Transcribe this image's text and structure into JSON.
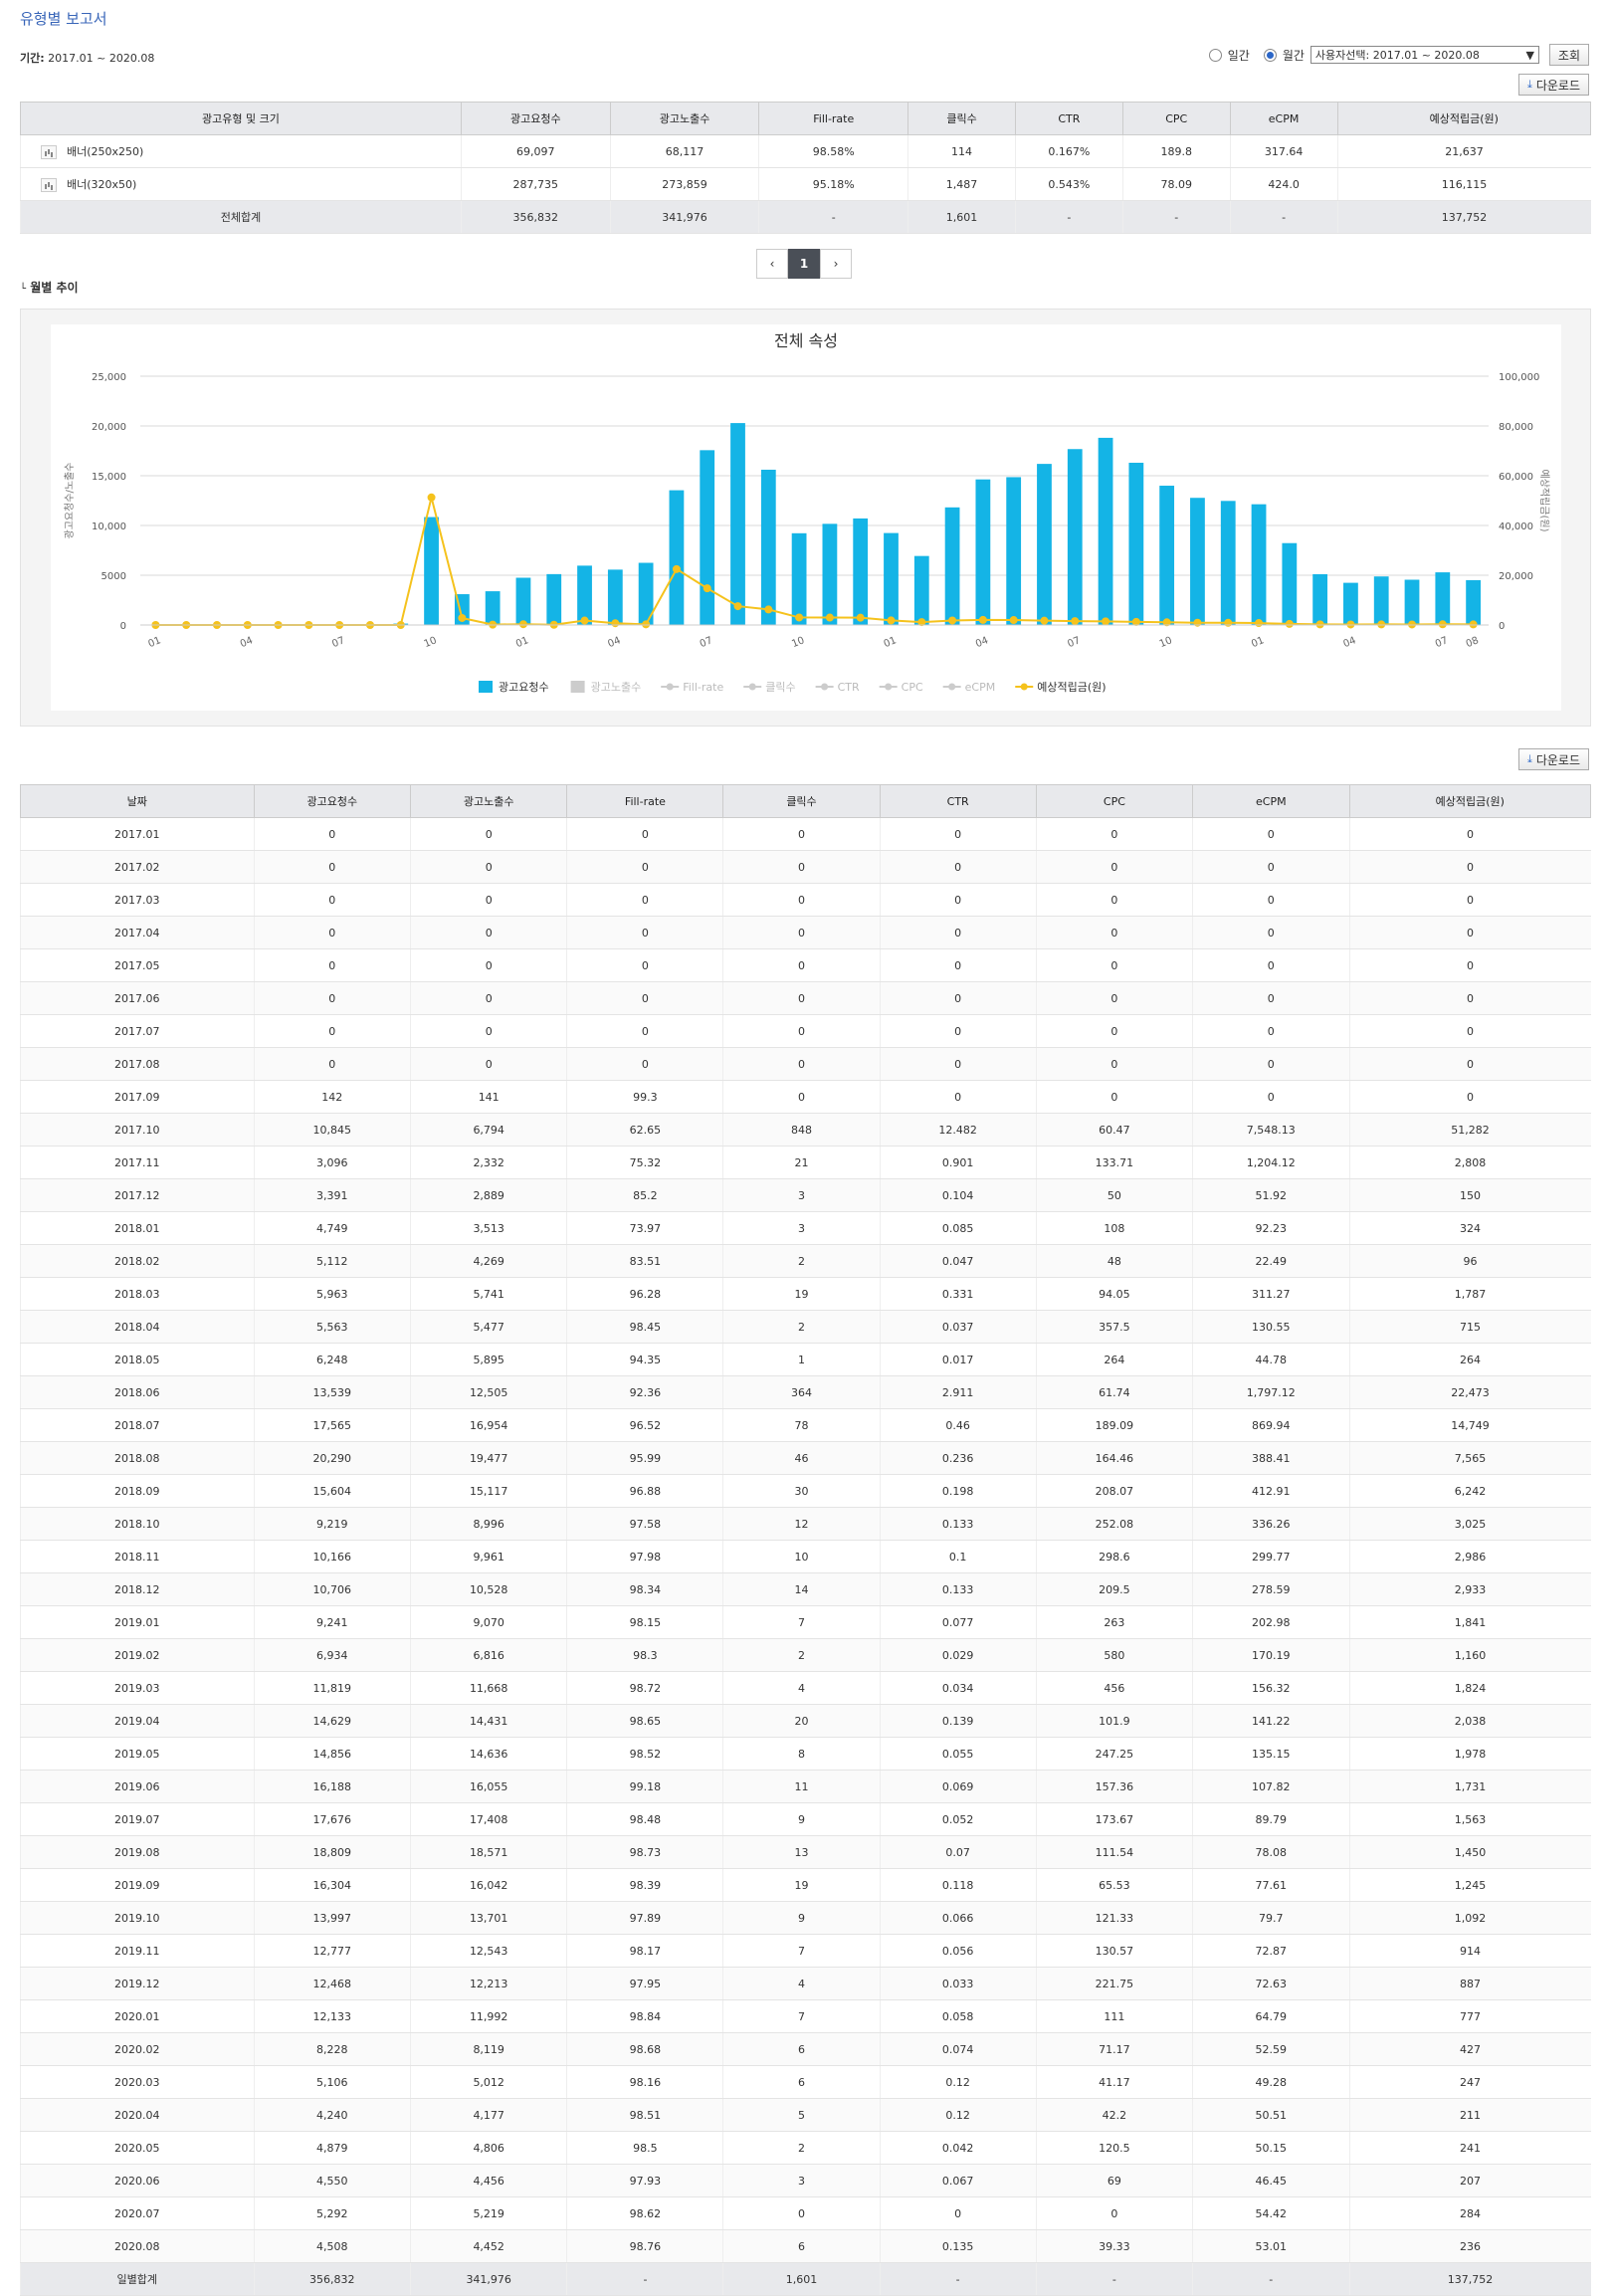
{
  "header": {
    "title": "유형별 보고서",
    "period_label": "기간:",
    "period_value": "2017.01 ~ 2020.08",
    "radio_daily": "일간",
    "radio_monthly": "월간",
    "select_value": "사용자선택: 2017.01 ~ 2020.08",
    "search_button": "조회",
    "download_button": "다운로드"
  },
  "summary": {
    "headers": [
      "광고유형 및 크기",
      "광고요청수",
      "광고노출수",
      "Fill-rate",
      "클릭수",
      "CTR",
      "CPC",
      "eCPM",
      "예상적립금(원)"
    ],
    "rows": [
      [
        "배너(250x250)",
        "69,097",
        "68,117",
        "98.58%",
        "114",
        "0.167%",
        "189.8",
        "317.64",
        "21,637"
      ],
      [
        "배너(320x50)",
        "287,735",
        "273,859",
        "95.18%",
        "1,487",
        "0.543%",
        "78.09",
        "424.0",
        "116,115"
      ]
    ],
    "total": [
      "전체합계",
      "356,832",
      "341,976",
      "-",
      "1,601",
      "-",
      "-",
      "-",
      "137,752"
    ]
  },
  "pager": {
    "current": "1"
  },
  "section_title": "월별 추이",
  "chart_data": {
    "type": "bar",
    "title": "전체 속성",
    "ylabel": "광고요청수/노출수",
    "y2label": "예상적립금(원)",
    "ylim": [
      0,
      25000
    ],
    "y2lim": [
      0,
      100000
    ],
    "yticks": [
      "0",
      "5000",
      "10,000",
      "15,000",
      "20,000",
      "25,000"
    ],
    "y2ticks": [
      "0",
      "20,000",
      "40,000",
      "60,000",
      "80,000",
      "100,000"
    ],
    "x_tick_labels": [
      "01",
      "04",
      "07",
      "10",
      "01",
      "04",
      "07",
      "10",
      "01",
      "04",
      "07",
      "10",
      "01",
      "04",
      "07",
      "08"
    ],
    "categories": [
      "2017.01",
      "2017.02",
      "2017.03",
      "2017.04",
      "2017.05",
      "2017.06",
      "2017.07",
      "2017.08",
      "2017.09",
      "2017.10",
      "2017.11",
      "2017.12",
      "2018.01",
      "2018.02",
      "2018.03",
      "2018.04",
      "2018.05",
      "2018.06",
      "2018.07",
      "2018.08",
      "2018.09",
      "2018.10",
      "2018.11",
      "2018.12",
      "2019.01",
      "2019.02",
      "2019.03",
      "2019.04",
      "2019.05",
      "2019.06",
      "2019.07",
      "2019.08",
      "2019.09",
      "2019.10",
      "2019.11",
      "2019.12",
      "2020.01",
      "2020.02",
      "2020.03",
      "2020.04",
      "2020.05",
      "2020.06",
      "2020.07",
      "2020.08"
    ],
    "series": [
      {
        "name": "광고요청수",
        "type": "bar",
        "color": "#14b4e6",
        "values": [
          0,
          0,
          0,
          0,
          0,
          0,
          0,
          0,
          142,
          10845,
          3096,
          3391,
          4749,
          5112,
          5963,
          5563,
          6248,
          13539,
          17565,
          20290,
          15604,
          9219,
          10166,
          10706,
          9241,
          6934,
          11819,
          14629,
          14856,
          16188,
          17676,
          18809,
          16304,
          13997,
          12777,
          12468,
          12133,
          8228,
          5106,
          4240,
          4879,
          4550,
          5292,
          4508
        ]
      },
      {
        "name": "예상적립금(원)",
        "type": "line",
        "axis": "right",
        "color": "#f5c21c",
        "values": [
          0,
          0,
          0,
          0,
          0,
          0,
          0,
          0,
          0,
          51282,
          2808,
          150,
          324,
          96,
          1787,
          715,
          264,
          22473,
          14749,
          7565,
          6242,
          3025,
          2986,
          2933,
          1841,
          1160,
          1824,
          2038,
          1978,
          1731,
          1563,
          1450,
          1245,
          1092,
          914,
          887,
          777,
          427,
          247,
          211,
          241,
          207,
          284,
          236
        ]
      }
    ],
    "legend": [
      {
        "name": "광고요청수",
        "color": "#14b4e6",
        "active": true,
        "shape": "square"
      },
      {
        "name": "광고노출수",
        "color": "#cccccc",
        "active": false,
        "shape": "square"
      },
      {
        "name": "Fill-rate",
        "color": "#cccccc",
        "active": false,
        "shape": "line"
      },
      {
        "name": "클릭수",
        "color": "#cccccc",
        "active": false,
        "shape": "line"
      },
      {
        "name": "CTR",
        "color": "#cccccc",
        "active": false,
        "shape": "line"
      },
      {
        "name": "CPC",
        "color": "#cccccc",
        "active": false,
        "shape": "line"
      },
      {
        "name": "eCPM",
        "color": "#cccccc",
        "active": false,
        "shape": "line"
      },
      {
        "name": "예상적립금(원)",
        "color": "#f5c21c",
        "active": true,
        "shape": "line"
      }
    ]
  },
  "monthly": {
    "headers": [
      "날짜",
      "광고요청수",
      "광고노출수",
      "Fill-rate",
      "클릭수",
      "CTR",
      "CPC",
      "eCPM",
      "예상적립금(원)"
    ],
    "rows": [
      [
        "2017.01",
        "0",
        "0",
        "0",
        "0",
        "0",
        "0",
        "0",
        "0"
      ],
      [
        "2017.02",
        "0",
        "0",
        "0",
        "0",
        "0",
        "0",
        "0",
        "0"
      ],
      [
        "2017.03",
        "0",
        "0",
        "0",
        "0",
        "0",
        "0",
        "0",
        "0"
      ],
      [
        "2017.04",
        "0",
        "0",
        "0",
        "0",
        "0",
        "0",
        "0",
        "0"
      ],
      [
        "2017.05",
        "0",
        "0",
        "0",
        "0",
        "0",
        "0",
        "0",
        "0"
      ],
      [
        "2017.06",
        "0",
        "0",
        "0",
        "0",
        "0",
        "0",
        "0",
        "0"
      ],
      [
        "2017.07",
        "0",
        "0",
        "0",
        "0",
        "0",
        "0",
        "0",
        "0"
      ],
      [
        "2017.08",
        "0",
        "0",
        "0",
        "0",
        "0",
        "0",
        "0",
        "0"
      ],
      [
        "2017.09",
        "142",
        "141",
        "99.3",
        "0",
        "0",
        "0",
        "0",
        "0"
      ],
      [
        "2017.10",
        "10,845",
        "6,794",
        "62.65",
        "848",
        "12.482",
        "60.47",
        "7,548.13",
        "51,282"
      ],
      [
        "2017.11",
        "3,096",
        "2,332",
        "75.32",
        "21",
        "0.901",
        "133.71",
        "1,204.12",
        "2,808"
      ],
      [
        "2017.12",
        "3,391",
        "2,889",
        "85.2",
        "3",
        "0.104",
        "50",
        "51.92",
        "150"
      ],
      [
        "2018.01",
        "4,749",
        "3,513",
        "73.97",
        "3",
        "0.085",
        "108",
        "92.23",
        "324"
      ],
      [
        "2018.02",
        "5,112",
        "4,269",
        "83.51",
        "2",
        "0.047",
        "48",
        "22.49",
        "96"
      ],
      [
        "2018.03",
        "5,963",
        "5,741",
        "96.28",
        "19",
        "0.331",
        "94.05",
        "311.27",
        "1,787"
      ],
      [
        "2018.04",
        "5,563",
        "5,477",
        "98.45",
        "2",
        "0.037",
        "357.5",
        "130.55",
        "715"
      ],
      [
        "2018.05",
        "6,248",
        "5,895",
        "94.35",
        "1",
        "0.017",
        "264",
        "44.78",
        "264"
      ],
      [
        "2018.06",
        "13,539",
        "12,505",
        "92.36",
        "364",
        "2.911",
        "61.74",
        "1,797.12",
        "22,473"
      ],
      [
        "2018.07",
        "17,565",
        "16,954",
        "96.52",
        "78",
        "0.46",
        "189.09",
        "869.94",
        "14,749"
      ],
      [
        "2018.08",
        "20,290",
        "19,477",
        "95.99",
        "46",
        "0.236",
        "164.46",
        "388.41",
        "7,565"
      ],
      [
        "2018.09",
        "15,604",
        "15,117",
        "96.88",
        "30",
        "0.198",
        "208.07",
        "412.91",
        "6,242"
      ],
      [
        "2018.10",
        "9,219",
        "8,996",
        "97.58",
        "12",
        "0.133",
        "252.08",
        "336.26",
        "3,025"
      ],
      [
        "2018.11",
        "10,166",
        "9,961",
        "97.98",
        "10",
        "0.1",
        "298.6",
        "299.77",
        "2,986"
      ],
      [
        "2018.12",
        "10,706",
        "10,528",
        "98.34",
        "14",
        "0.133",
        "209.5",
        "278.59",
        "2,933"
      ],
      [
        "2019.01",
        "9,241",
        "9,070",
        "98.15",
        "7",
        "0.077",
        "263",
        "202.98",
        "1,841"
      ],
      [
        "2019.02",
        "6,934",
        "6,816",
        "98.3",
        "2",
        "0.029",
        "580",
        "170.19",
        "1,160"
      ],
      [
        "2019.03",
        "11,819",
        "11,668",
        "98.72",
        "4",
        "0.034",
        "456",
        "156.32",
        "1,824"
      ],
      [
        "2019.04",
        "14,629",
        "14,431",
        "98.65",
        "20",
        "0.139",
        "101.9",
        "141.22",
        "2,038"
      ],
      [
        "2019.05",
        "14,856",
        "14,636",
        "98.52",
        "8",
        "0.055",
        "247.25",
        "135.15",
        "1,978"
      ],
      [
        "2019.06",
        "16,188",
        "16,055",
        "99.18",
        "11",
        "0.069",
        "157.36",
        "107.82",
        "1,731"
      ],
      [
        "2019.07",
        "17,676",
        "17,408",
        "98.48",
        "9",
        "0.052",
        "173.67",
        "89.79",
        "1,563"
      ],
      [
        "2019.08",
        "18,809",
        "18,571",
        "98.73",
        "13",
        "0.07",
        "111.54",
        "78.08",
        "1,450"
      ],
      [
        "2019.09",
        "16,304",
        "16,042",
        "98.39",
        "19",
        "0.118",
        "65.53",
        "77.61",
        "1,245"
      ],
      [
        "2019.10",
        "13,997",
        "13,701",
        "97.89",
        "9",
        "0.066",
        "121.33",
        "79.7",
        "1,092"
      ],
      [
        "2019.11",
        "12,777",
        "12,543",
        "98.17",
        "7",
        "0.056",
        "130.57",
        "72.87",
        "914"
      ],
      [
        "2019.12",
        "12,468",
        "12,213",
        "97.95",
        "4",
        "0.033",
        "221.75",
        "72.63",
        "887"
      ],
      [
        "2020.01",
        "12,133",
        "11,992",
        "98.84",
        "7",
        "0.058",
        "111",
        "64.79",
        "777"
      ],
      [
        "2020.02",
        "8,228",
        "8,119",
        "98.68",
        "6",
        "0.074",
        "71.17",
        "52.59",
        "427"
      ],
      [
        "2020.03",
        "5,106",
        "5,012",
        "98.16",
        "6",
        "0.12",
        "41.17",
        "49.28",
        "247"
      ],
      [
        "2020.04",
        "4,240",
        "4,177",
        "98.51",
        "5",
        "0.12",
        "42.2",
        "50.51",
        "211"
      ],
      [
        "2020.05",
        "4,879",
        "4,806",
        "98.5",
        "2",
        "0.042",
        "120.5",
        "50.15",
        "241"
      ],
      [
        "2020.06",
        "4,550",
        "4,456",
        "97.93",
        "3",
        "0.067",
        "69",
        "46.45",
        "207"
      ],
      [
        "2020.07",
        "5,292",
        "5,219",
        "98.62",
        "0",
        "0",
        "0",
        "54.42",
        "284"
      ],
      [
        "2020.08",
        "4,508",
        "4,452",
        "98.76",
        "6",
        "0.135",
        "39.33",
        "53.01",
        "236"
      ]
    ],
    "total": [
      "일별합계",
      "356,832",
      "341,976",
      "-",
      "1,601",
      "-",
      "-",
      "-",
      "137,752"
    ]
  }
}
